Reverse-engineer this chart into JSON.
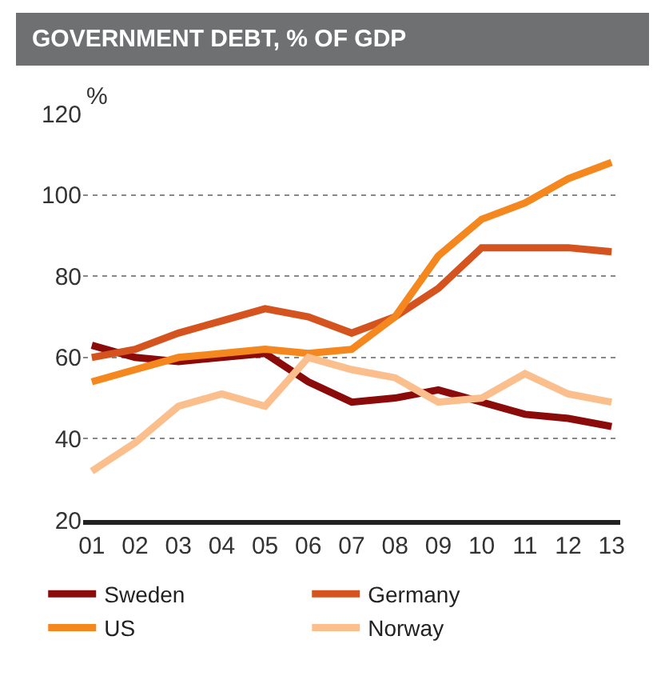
{
  "chart_data": {
    "type": "line",
    "title": "GOVERNMENT DEBT, % OF GDP",
    "ylabel": "%",
    "categories": [
      "01",
      "02",
      "03",
      "04",
      "05",
      "06",
      "07",
      "08",
      "09",
      "10",
      "11",
      "12",
      "13"
    ],
    "series": [
      {
        "name": "Sweden",
        "color": "#8b0a0a",
        "values": [
          63,
          60,
          59,
          60,
          61,
          54,
          49,
          50,
          52,
          49,
          46,
          45,
          43
        ]
      },
      {
        "name": "Germany",
        "color": "#d4531f",
        "values": [
          60,
          62,
          66,
          69,
          72,
          70,
          66,
          70,
          77,
          87,
          87,
          87,
          86
        ]
      },
      {
        "name": "US",
        "color": "#f5871f",
        "values": [
          54,
          57,
          60,
          61,
          62,
          61,
          62,
          70,
          85,
          94,
          98,
          104,
          108
        ]
      },
      {
        "name": "Norway",
        "color": "#fbbf8e",
        "values": [
          32,
          39,
          48,
          51,
          48,
          60,
          57,
          55,
          49,
          50,
          56,
          51,
          49
        ]
      }
    ],
    "ylim": [
      20,
      120
    ],
    "yticks": [
      20,
      40,
      60,
      80,
      100,
      120
    ],
    "grid": "y",
    "legend": "bottom",
    "marker": "none",
    "line_style": "solid"
  }
}
